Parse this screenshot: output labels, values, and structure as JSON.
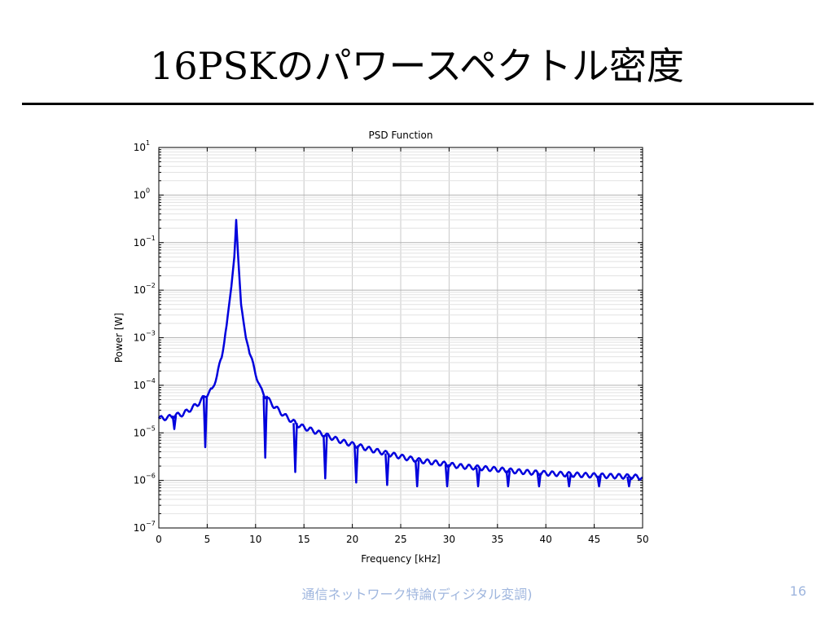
{
  "slide": {
    "title": "16PSKのパワースペクトル密度",
    "footer": "通信ネットワーク特論(ディジタル変調)",
    "page_number": "16"
  },
  "chart_data": {
    "type": "line",
    "title": "PSD Function",
    "xlabel": "Frequency [kHz]",
    "ylabel": "Power [W]",
    "xlim": [
      0,
      50
    ],
    "ylim": [
      1e-07,
      10
    ],
    "yscale": "log",
    "grid": true,
    "x_ticks": [
      "0",
      "5",
      "10",
      "15",
      "20",
      "25",
      "30",
      "35",
      "40",
      "45",
      "50"
    ],
    "y_ticks": [
      {
        "base": "10",
        "exp": "1"
      },
      {
        "base": "10",
        "exp": "0"
      },
      {
        "base": "10",
        "exp": "−1"
      },
      {
        "base": "10",
        "exp": "−2"
      },
      {
        "base": "10",
        "exp": "−3"
      },
      {
        "base": "10",
        "exp": "−4"
      },
      {
        "base": "10",
        "exp": "−5"
      },
      {
        "base": "10",
        "exp": "−6"
      },
      {
        "base": "10",
        "exp": "−7"
      }
    ],
    "series": [
      {
        "color": "#0000dd",
        "x": [
          0,
          1.0,
          1.6,
          2.5,
          3.0,
          4.0,
          4.8,
          5.5,
          6.0,
          6.5,
          7.0,
          7.5,
          7.8,
          8.0,
          8.2,
          8.5,
          9.0,
          9.5,
          10.0,
          10.5,
          11.0,
          11.5,
          12.0,
          13.0,
          14.3,
          15.0,
          16.0,
          17.5,
          19.0,
          20.6,
          22.0,
          23.8,
          25.5,
          27.0,
          29.0,
          31.0,
          33.0,
          35.0,
          37.0,
          39.0,
          41.0,
          43.0,
          45.0,
          47.0,
          49.0,
          50.0
        ],
        "y": [
          2e-05,
          2.1e-05,
          2.3e-05,
          2.5e-05,
          2.9e-05,
          4e-05,
          6e-05,
          8e-05,
          0.00016,
          0.0004,
          0.0018,
          0.012,
          0.05,
          0.3,
          0.05,
          0.005,
          0.001,
          0.0004,
          0.00018,
          8.5e-05,
          6e-05,
          4.5e-05,
          3.5e-05,
          2.3e-05,
          1.5e-05,
          1.3e-05,
          1.1e-05,
          8.5e-06,
          6.5e-06,
          5.3e-06,
          4.4e-06,
          3.6e-06,
          3e-06,
          2.6e-06,
          2.3e-06,
          2e-06,
          1.85e-06,
          1.7e-06,
          1.55e-06,
          1.45e-06,
          1.38e-06,
          1.32e-06,
          1.27e-06,
          1.23e-06,
          1.2e-06,
          1.15e-06
        ]
      }
    ],
    "dips": [
      {
        "x": 1.6,
        "y": 1.2e-05
      },
      {
        "x": 4.8,
        "y": 5e-06
      },
      {
        "x": 11.0,
        "y": 3e-06
      },
      {
        "x": 14.1,
        "y": 1.5e-06
      },
      {
        "x": 17.2,
        "y": 1.1e-06
      },
      {
        "x": 20.4,
        "y": 9e-07
      },
      {
        "x": 23.6,
        "y": 8e-07
      },
      {
        "x": 26.7,
        "y": 7.5e-07
      },
      {
        "x": 29.8,
        "y": 7.5e-07
      },
      {
        "x": 33.0,
        "y": 7.5e-07
      },
      {
        "x": 36.1,
        "y": 7.5e-07
      },
      {
        "x": 39.3,
        "y": 7.5e-07
      },
      {
        "x": 42.4,
        "y": 7.5e-07
      },
      {
        "x": 45.5,
        "y": 7.5e-07
      },
      {
        "x": 48.6,
        "y": 7.5e-07
      }
    ]
  }
}
